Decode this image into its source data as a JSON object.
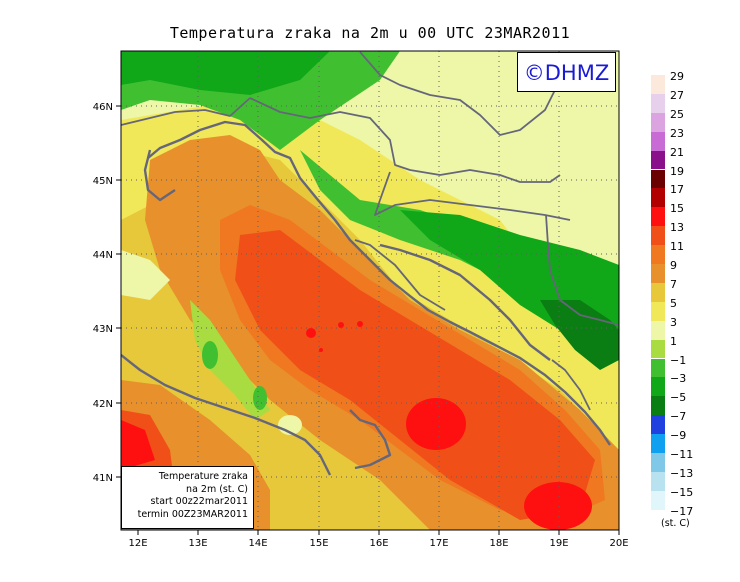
{
  "title": "Temperatura zraka na 2m u 00 UTC 23MAR2011",
  "logo": "©DHMZ",
  "info_box": {
    "line1": "Temperature zraka",
    "line2": "na 2m (st. C)",
    "line3": "start 00z22mar2011",
    "line4": "termin 00Z23MAR2011"
  },
  "axes": {
    "x_ticks": [
      "12E",
      "13E",
      "14E",
      "15E",
      "16E",
      "17E",
      "18E",
      "19E",
      "20E"
    ],
    "y_ticks": [
      "41N",
      "42N",
      "43N",
      "44N",
      "45N",
      "46N"
    ]
  },
  "legend": {
    "unit": "(st. C)",
    "labels": [
      "29",
      "27",
      "25",
      "23",
      "21",
      "19",
      "17",
      "15",
      "13",
      "11",
      "9",
      "7",
      "5",
      "3",
      "1",
      "−1",
      "−3",
      "−5",
      "−7",
      "−9",
      "−11",
      "−13",
      "−15",
      "−17"
    ],
    "colors": [
      "#fde9dc",
      "#e6d0ec",
      "#dba4e0",
      "#c86bd5",
      "#8a0f8a",
      "#6b0000",
      "#b20000",
      "#ff1010",
      "#f05018",
      "#f07820",
      "#e8902c",
      "#e6c83a",
      "#f0e858",
      "#eef6a8",
      "#a8dc40",
      "#40c030",
      "#10a818",
      "#0a7e12",
      "#2040e0",
      "#10a0f0",
      "#80c8e8",
      "#b8e2f0",
      "#e0f6fa",
      "#ffffff"
    ]
  }
}
